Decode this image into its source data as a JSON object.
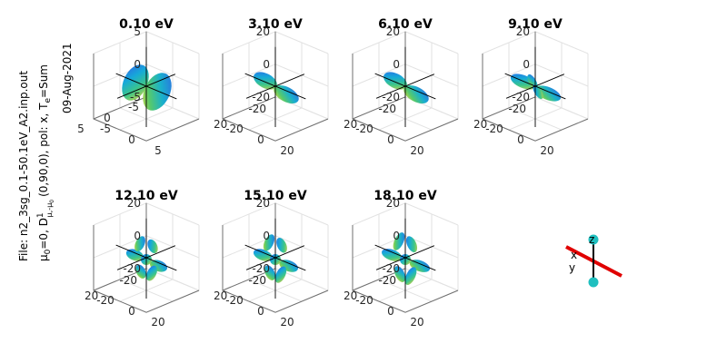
{
  "figure": {
    "side_text": {
      "line1": "File: n2_3sg_0.1-50.1eV_A2.inp.out",
      "line2_mu0": "μ",
      "line2_mu0_sub": "0",
      "line2_eq": "=0, D",
      "line2_D_sup": "1",
      "line2_D_sub": "μ,-μ",
      "line2_D_sub0": "0",
      "line2_angles": "(0,90,0), pol: x, T",
      "line2_T_sub": "e",
      "line2_sum": "=Sum",
      "line3": "09-Aug-2021"
    },
    "orientation_legend": {
      "z_label": "z",
      "x_label": "x",
      "y_label": "y",
      "axis_color": "#e00000",
      "atom_color": "#1fbfbf"
    }
  },
  "chart_data": [
    {
      "type": "surface3d",
      "title": "0.10 eV",
      "lim": 5,
      "x_ticks": [
        "-5",
        "0",
        "5"
      ],
      "y_ticks": [
        "-5",
        "0",
        "5"
      ],
      "z_ticks": [
        "5",
        "0",
        "-5"
      ],
      "lobes": 1
    },
    {
      "type": "surface3d",
      "title": "3.10 eV",
      "lim": 20,
      "x_ticks": [
        "-20",
        "0",
        "20"
      ],
      "y_ticks": [
        "-20",
        "20"
      ],
      "z_ticks": [
        "20",
        "0",
        "-20"
      ],
      "lobes": 1
    },
    {
      "type": "surface3d",
      "title": "6.10 eV",
      "lim": 20,
      "x_ticks": [
        "-20",
        "0",
        "20"
      ],
      "y_ticks": [
        "-20",
        "20"
      ],
      "z_ticks": [
        "20",
        "0",
        "-20"
      ],
      "lobes": 1
    },
    {
      "type": "surface3d",
      "title": "9.10 eV",
      "lim": 20,
      "x_ticks": [
        "-20",
        "0",
        "20"
      ],
      "y_ticks": [
        "-20",
        "20"
      ],
      "z_ticks": [
        "20",
        "0",
        "-20"
      ],
      "lobes": 2
    },
    {
      "type": "surface3d",
      "title": "12.10 eV",
      "lim": 20,
      "x_ticks": [
        "-20",
        "0",
        "20"
      ],
      "y_ticks": [
        "-20",
        "20"
      ],
      "z_ticks": [
        "20",
        "0",
        "-20"
      ],
      "lobes": 3
    },
    {
      "type": "surface3d",
      "title": "15.10 eV",
      "lim": 20,
      "x_ticks": [
        "-20",
        "0",
        "20"
      ],
      "y_ticks": [
        "-20",
        "20"
      ],
      "z_ticks": [
        "20",
        "0",
        "-20"
      ],
      "lobes": 3
    },
    {
      "type": "surface3d",
      "title": "18.10 eV",
      "lim": 20,
      "x_ticks": [
        "-20",
        "0",
        "20"
      ],
      "y_ticks": [
        "-20",
        "20"
      ],
      "z_ticks": [
        "20",
        "0",
        "-20"
      ],
      "lobes": 3
    }
  ]
}
